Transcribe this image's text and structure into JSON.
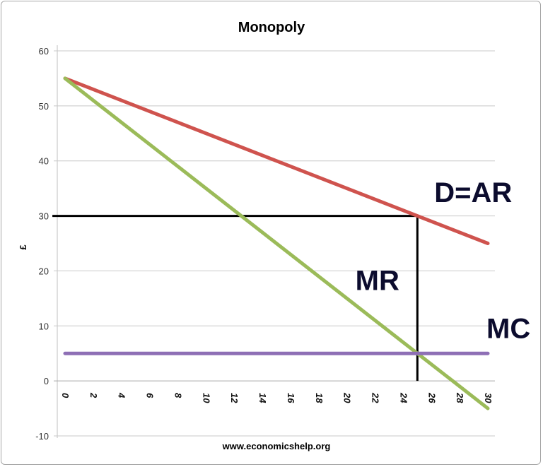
{
  "chart_data": {
    "type": "line",
    "title": "Monopoly",
    "xlabel": "www.economicshelp.org",
    "ylabel": "£",
    "ylim": [
      -10,
      60
    ],
    "xlim": [
      0,
      30
    ],
    "yticks": [
      -10,
      0,
      10,
      20,
      30,
      40,
      50,
      60
    ],
    "xticks": [
      0,
      2,
      4,
      6,
      8,
      10,
      12,
      14,
      16,
      18,
      20,
      22,
      24,
      26,
      28,
      30
    ],
    "grid": true,
    "series": [
      {
        "name": "D=AR",
        "color": "#cf534e",
        "x": [
          0,
          30
        ],
        "y": [
          55,
          25
        ]
      },
      {
        "name": "MR",
        "color": "#9bbb59",
        "x": [
          0,
          30
        ],
        "y": [
          55,
          -5
        ]
      },
      {
        "name": "MC",
        "color": "#8e6fb5",
        "x": [
          0,
          30
        ],
        "y": [
          5,
          5
        ]
      }
    ],
    "guides": [
      {
        "name": "price-line",
        "color": "#000000",
        "x": [
          -0.9,
          25
        ],
        "y": [
          30,
          30
        ]
      },
      {
        "name": "quantity-line",
        "color": "#000000",
        "x": [
          25,
          25
        ],
        "y": [
          30,
          0
        ]
      }
    ],
    "annotations": [
      {
        "text": "D=AR",
        "x": 26.2,
        "y": 32.5
      },
      {
        "text": "MR",
        "x": 20.6,
        "y": 16.5
      },
      {
        "text": "MC",
        "x": 29.9,
        "y": 7.8
      }
    ]
  }
}
